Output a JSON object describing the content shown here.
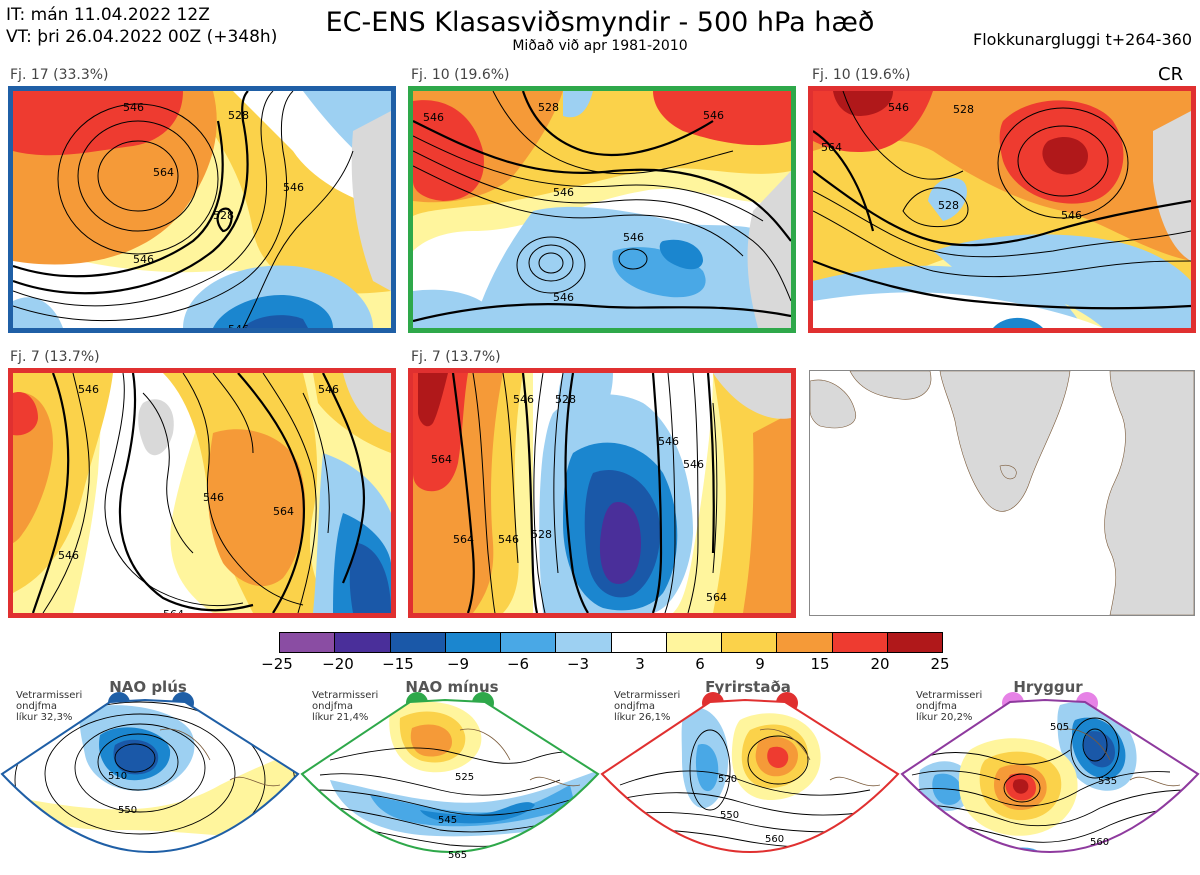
{
  "header": {
    "it_line": "IT: mán 11.04.2022 12Z",
    "vt_line": "VT: þri 26.04.2022 00Z  (+348h)",
    "title": "EC-ENS Klasasviðsmyndir - 500 hPa hæð",
    "subtitle": "Miðað við apr 1981-2010",
    "window": "Flokkunargluggi t+264-360",
    "cr": "CR"
  },
  "clusters": [
    {
      "label": "Fj. 17 (33.3%)",
      "border": "#1f5fa6",
      "regime": "NAO plús"
    },
    {
      "label": "Fj. 10 (19.6%)",
      "border": "#2ea84a",
      "regime": "NAO mínus"
    },
    {
      "label": "Fj. 10 (19.6%)",
      "border": "#e03030",
      "regime": "Fyrirstaða"
    },
    {
      "label": "Fj. 7 (13.7%)",
      "border": "#e03030",
      "regime": "Fyrirstaða"
    },
    {
      "label": "Fj. 7 (13.7%)",
      "border": "#e03030",
      "regime": "Fyrirstaða"
    }
  ],
  "contour_labels": {
    "p1": [
      "546",
      "528",
      "564",
      "528",
      "546",
      "546",
      "546"
    ],
    "p2": [
      "546",
      "528",
      "546",
      "546",
      "546",
      "546"
    ],
    "p3": [
      "546",
      "528",
      "564",
      "546",
      "528"
    ],
    "p4": [
      "546",
      "546",
      "564",
      "546",
      "564",
      "546"
    ],
    "p5": [
      "564",
      "546",
      "528",
      "564",
      "546",
      "528",
      "546",
      "546",
      "564"
    ]
  },
  "colorbar": {
    "ticks": [
      "−25",
      "−20",
      "−15",
      "−9",
      "−6",
      "−3",
      "3",
      "6",
      "9",
      "15",
      "20",
      "25"
    ],
    "colors": [
      "#8a4da3",
      "#4a2f9a",
      "#1a58a8",
      "#1b86cf",
      "#49a8e6",
      "#9dd0f2",
      "#ffffff",
      "#fff59d",
      "#fbd24a",
      "#f59a38",
      "#ee3b30",
      "#b0181a"
    ]
  },
  "regimes": [
    {
      "name": "NAO plús",
      "note": [
        "Vetrarmisseri",
        "ondjfma",
        "líkur 32,3%"
      ],
      "color": "#1f5fa6",
      "labels": [
        "510",
        "550"
      ]
    },
    {
      "name": "NAO mínus",
      "note": [
        "Vetrarmisseri",
        "ondjfma",
        "líkur 21,4%"
      ],
      "color": "#2ea84a",
      "labels": [
        "525",
        "545",
        "565"
      ]
    },
    {
      "name": "Fyrirstaða",
      "note": [
        "Vetrarmisseri",
        "ondjfma",
        "líkur 26,1%"
      ],
      "color": "#e03030",
      "labels": [
        "520",
        "550",
        "560"
      ]
    },
    {
      "name": "Hryggur",
      "note": [
        "Vetrarmisseri",
        "ondjfma",
        "líkur 20,2%"
      ],
      "color": "#8e3a9e",
      "labels": [
        "505",
        "535",
        "560"
      ]
    }
  ]
}
